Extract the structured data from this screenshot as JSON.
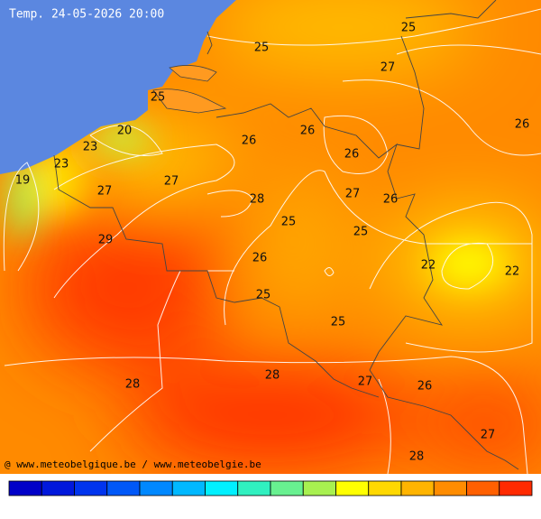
{
  "title": "Temp. 24-05-2026 20:00",
  "credit": "@ www.meteobelgique.be / www.meteobelgie.be",
  "contour_labels": [
    25,
    25,
    27,
    25,
    26,
    26,
    26,
    20,
    23,
    23,
    26,
    19,
    27,
    27,
    27,
    26,
    28,
    25,
    25,
    29,
    26,
    22,
    22,
    25,
    25,
    28,
    27,
    28,
    26,
    27,
    28
  ],
  "legend_colors": [
    "#0000c8",
    "#0018dc",
    "#0034ee",
    "#0058f8",
    "#0088ff",
    "#00b8ff",
    "#00f0ff",
    "#30f0c0",
    "#68f090",
    "#a8f050",
    "#ffff00",
    "#ffd800",
    "#ffb400",
    "#ff8c00",
    "#ff6000",
    "#ff2a00"
  ]
}
